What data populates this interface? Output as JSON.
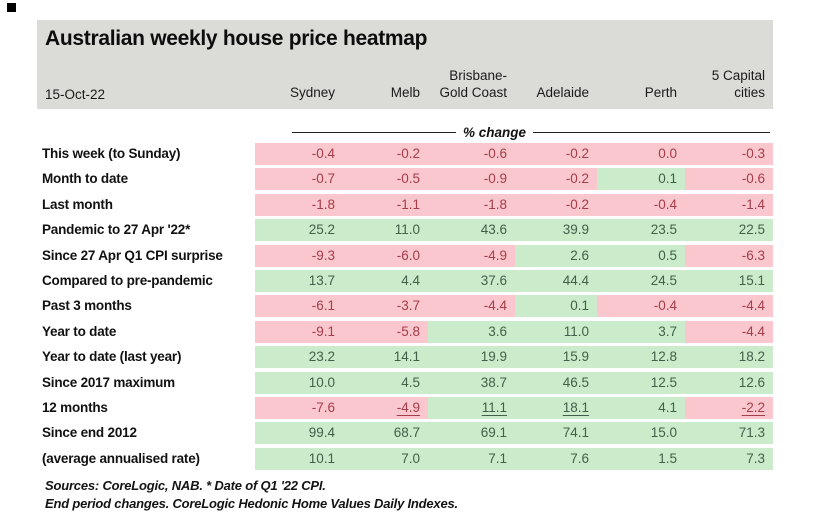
{
  "header": {
    "title": "Australian weekly house price heatmap",
    "date_label": "15-Oct-22"
  },
  "chart_data": {
    "type": "heatmap",
    "title": "Australian weekly house price heatmap",
    "date_label": "15-Oct-22",
    "unit_label": "% change",
    "columns": [
      "Sydney",
      "Melb",
      "Brisbane-\nGold Coast",
      "Adelaide",
      "Perth",
      "5 Capital\ncities"
    ],
    "rows": [
      {
        "label": "This week (to Sunday)",
        "values": [
          -0.4,
          -0.2,
          -0.6,
          -0.2,
          0.0,
          -0.3
        ]
      },
      {
        "label": "Month to date",
        "values": [
          -0.7,
          -0.5,
          -0.9,
          -0.2,
          0.1,
          -0.6
        ]
      },
      {
        "label": "Last month",
        "values": [
          -1.8,
          -1.1,
          -1.8,
          -0.2,
          -0.4,
          -1.4
        ]
      },
      {
        "label": "Pandemic to 27 Apr '22*",
        "values": [
          25.2,
          11.0,
          43.6,
          39.9,
          23.5,
          22.5
        ]
      },
      {
        "label": "Since 27 Apr Q1 CPI surprise",
        "values": [
          -9.3,
          -6.0,
          -4.9,
          2.6,
          0.5,
          -6.3
        ]
      },
      {
        "label": "Compared to pre-pandemic",
        "values": [
          13.7,
          4.4,
          37.6,
          44.4,
          24.5,
          15.1
        ]
      },
      {
        "label": "Past 3 months",
        "values": [
          -6.1,
          -3.7,
          -4.4,
          0.1,
          -0.4,
          -4.4
        ]
      },
      {
        "label": "Year to date",
        "values": [
          -9.1,
          -5.8,
          3.6,
          11.0,
          3.7,
          -4.4
        ]
      },
      {
        "label": "Year to date (last year)",
        "values": [
          23.2,
          14.1,
          19.9,
          15.9,
          12.8,
          18.2
        ]
      },
      {
        "label": "Since 2017 maximum",
        "values": [
          10.0,
          4.5,
          38.7,
          46.5,
          12.5,
          12.6
        ]
      },
      {
        "label": "12 months",
        "values": [
          -7.6,
          -4.9,
          11.1,
          18.1,
          4.1,
          -2.2
        ],
        "underline": [
          1,
          2,
          3,
          5
        ]
      },
      {
        "label": "Since end 2012",
        "values": [
          99.4,
          68.7,
          69.1,
          74.1,
          15.0,
          71.3
        ]
      },
      {
        "label": " (average annualised rate)",
        "values": [
          10.1,
          7.0,
          7.1,
          7.6,
          1.5,
          7.3
        ]
      }
    ],
    "positive_color": "#cbeccb",
    "negative_color": "#f9c7cd",
    "positive_text_color": "#41604a",
    "negative_text_color": "#a53d4a",
    "legend_rule": "green = positive change, pink = zero or negative change"
  },
  "footnotes": [
    "Sources: CoreLogic, NAB. * Date of Q1 '22 CPI.",
    "End period changes. CoreLogic Hedonic Home Values Daily Indexes."
  ]
}
